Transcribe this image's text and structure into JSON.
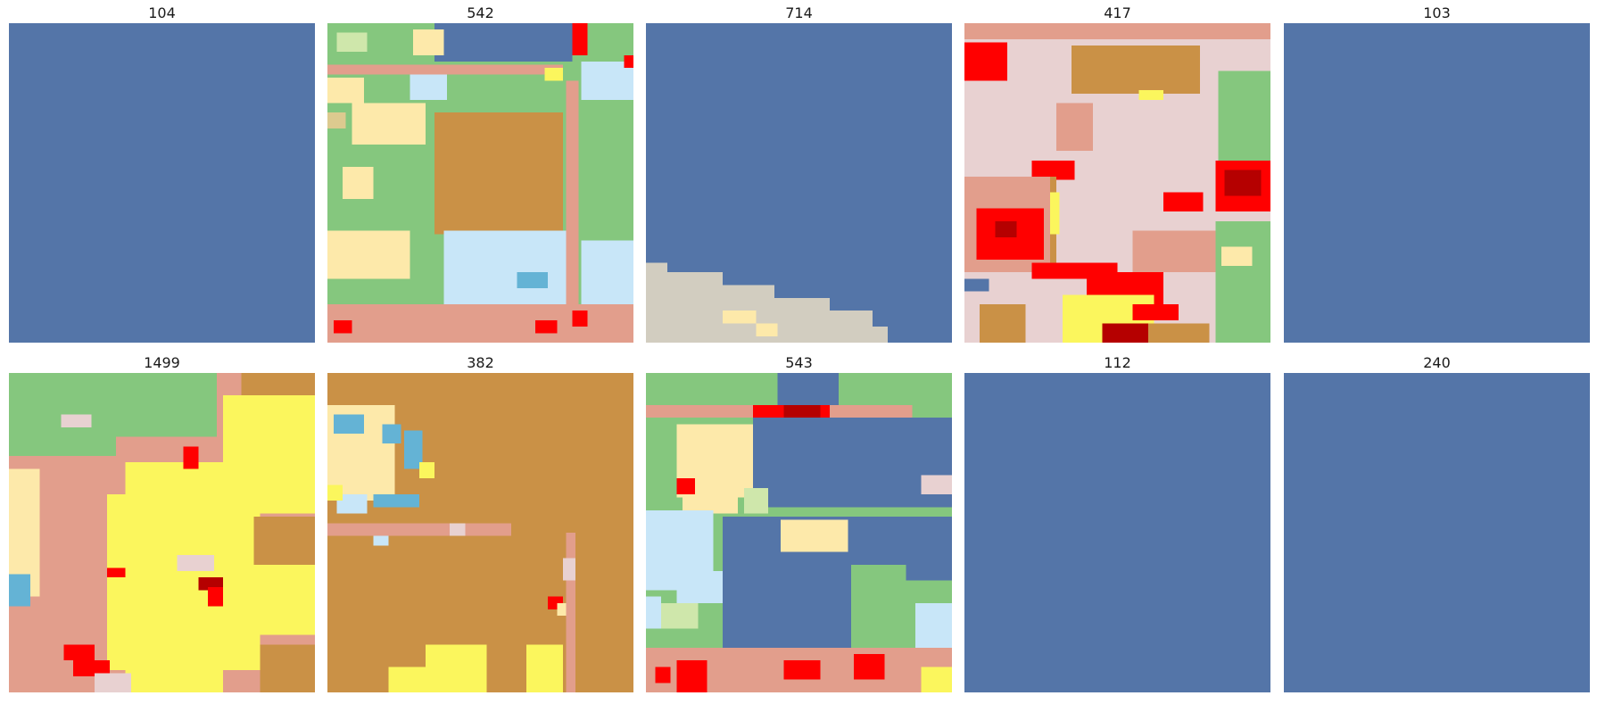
{
  "palette": {
    "water": "#5475a8",
    "grass": "#85c77e",
    "shrub": "#dcca8f",
    "crop": "#fde9aa",
    "dev_open": "#e8d1d1",
    "dev_low": "#e29e8c",
    "dev_med": "#ff0000",
    "dev_high": "#b50000",
    "forest": "#ca9146",
    "barren": "#d2cdc0",
    "wetland": "#c8e6f8",
    "wetland_dark": "#64b3d5",
    "pasture": "#fbf65d",
    "mixed": "#cfe7ab"
  },
  "panels": [
    {
      "title": "104",
      "base": "water",
      "blocks": []
    },
    {
      "title": "542",
      "base": "grass",
      "blocks": [
        [
          "water",
          0.35,
          0,
          0.45,
          0.12
        ],
        [
          "crop",
          0.28,
          0.02,
          0.1,
          0.08
        ],
        [
          "mixed",
          0.03,
          0.03,
          0.1,
          0.06
        ],
        [
          "dev_low",
          0,
          0.13,
          0.77,
          0.03
        ],
        [
          "crop",
          0,
          0.17,
          0.12,
          0.08
        ],
        [
          "shrub",
          0,
          0.28,
          0.06,
          0.05
        ],
        [
          "crop",
          0.08,
          0.25,
          0.24,
          0.13
        ],
        [
          "wetland",
          0.27,
          0.16,
          0.12,
          0.08
        ],
        [
          "forest",
          0.35,
          0.28,
          0.42,
          0.38
        ],
        [
          "crop",
          0,
          0.65,
          0.27,
          0.15
        ],
        [
          "crop",
          0.05,
          0.45,
          0.1,
          0.1
        ],
        [
          "wetland",
          0.38,
          0.65,
          0.42,
          0.23
        ],
        [
          "wetland_dark",
          0.62,
          0.78,
          0.1,
          0.05
        ],
        [
          "dev_low",
          0.78,
          0.18,
          0.04,
          0.82
        ],
        [
          "wetland",
          0.83,
          0.12,
          0.17,
          0.12
        ],
        [
          "wetland",
          0.83,
          0.68,
          0.17,
          0.2
        ],
        [
          "dev_low",
          0,
          0.88,
          1,
          0.12
        ],
        [
          "dev_med",
          0.8,
          0,
          0.05,
          0.1
        ],
        [
          "dev_med",
          0.97,
          0.1,
          0.03,
          0.04
        ],
        [
          "dev_med",
          0.02,
          0.93,
          0.06,
          0.04
        ],
        [
          "dev_med",
          0.68,
          0.93,
          0.07,
          0.04
        ],
        [
          "dev_med",
          0.8,
          0.9,
          0.05,
          0.05
        ],
        [
          "pasture",
          0.71,
          0.14,
          0.06,
          0.04
        ]
      ]
    },
    {
      "title": "714",
      "base": "water",
      "blocks": [
        [
          "barren",
          0,
          0.75,
          0.07,
          0.25
        ],
        [
          "barren",
          0.07,
          0.78,
          0.18,
          0.22
        ],
        [
          "barren",
          0.17,
          0.82,
          0.25,
          0.18
        ],
        [
          "barren",
          0.34,
          0.86,
          0.26,
          0.14
        ],
        [
          "barren",
          0.48,
          0.9,
          0.26,
          0.1
        ],
        [
          "barren",
          0.58,
          0.95,
          0.21,
          0.05
        ],
        [
          "crop",
          0.25,
          0.9,
          0.11,
          0.04
        ],
        [
          "crop",
          0.36,
          0.94,
          0.07,
          0.04
        ]
      ]
    },
    {
      "title": "417",
      "base": "dev_open",
      "blocks": [
        [
          "dev_low",
          0,
          0,
          1,
          0.05
        ],
        [
          "dev_med",
          0,
          0.06,
          0.14,
          0.12
        ],
        [
          "forest",
          0.35,
          0.07,
          0.42,
          0.15
        ],
        [
          "pasture",
          0.57,
          0.21,
          0.08,
          0.03
        ],
        [
          "grass",
          0.83,
          0.15,
          0.17,
          0.3
        ],
        [
          "dev_low",
          0.3,
          0.25,
          0.12,
          0.15
        ],
        [
          "dev_med",
          0.22,
          0.43,
          0.14,
          0.06
        ],
        [
          "dev_med",
          0.82,
          0.43,
          0.18,
          0.16
        ],
        [
          "dev_high",
          0.85,
          0.46,
          0.12,
          0.08
        ],
        [
          "forest",
          0.25,
          0.48,
          0.05,
          0.3
        ],
        [
          "pasture",
          0.28,
          0.53,
          0.03,
          0.13
        ],
        [
          "dev_low",
          0,
          0.48,
          0.28,
          0.3
        ],
        [
          "dev_med",
          0.04,
          0.58,
          0.22,
          0.16
        ],
        [
          "dev_high",
          0.1,
          0.62,
          0.07,
          0.05
        ],
        [
          "dev_med",
          0.65,
          0.53,
          0.13,
          0.06
        ],
        [
          "dev_low",
          0.55,
          0.65,
          0.45,
          0.13
        ],
        [
          "grass",
          0.82,
          0.62,
          0.18,
          0.38
        ],
        [
          "crop",
          0.84,
          0.7,
          0.1,
          0.06
        ],
        [
          "dev_med",
          0.22,
          0.75,
          0.28,
          0.05
        ],
        [
          "dev_med",
          0.4,
          0.78,
          0.25,
          0.12
        ],
        [
          "water",
          0,
          0.8,
          0.08,
          0.04
        ],
        [
          "pasture",
          0.32,
          0.85,
          0.3,
          0.15
        ],
        [
          "forest",
          0.05,
          0.88,
          0.15,
          0.12
        ],
        [
          "dev_high",
          0.45,
          0.94,
          0.15,
          0.06
        ],
        [
          "forest",
          0.6,
          0.94,
          0.2,
          0.06
        ],
        [
          "dev_med",
          0.55,
          0.88,
          0.15,
          0.05
        ]
      ]
    },
    {
      "title": "103",
      "base": "water",
      "blocks": []
    },
    {
      "title": "1499",
      "base": "dev_low",
      "blocks": [
        [
          "grass",
          0,
          0,
          0.68,
          0.2
        ],
        [
          "grass",
          0,
          0.2,
          0.35,
          0.06
        ],
        [
          "forest",
          0.76,
          0,
          0.24,
          0.07
        ],
        [
          "pasture",
          0.7,
          0.07,
          0.3,
          0.37
        ],
        [
          "dev_open",
          0.17,
          0.13,
          0.1,
          0.04
        ],
        [
          "pasture",
          0.38,
          0.28,
          0.32,
          0.72
        ],
        [
          "pasture",
          0.32,
          0.38,
          0.5,
          0.55
        ],
        [
          "crop",
          0,
          0.3,
          0.1,
          0.4
        ],
        [
          "wetland_dark",
          0,
          0.63,
          0.07,
          0.1
        ],
        [
          "forest",
          0.8,
          0.45,
          0.2,
          0.18
        ],
        [
          "forest",
          0.82,
          0.85,
          0.18,
          0.15
        ],
        [
          "dev_open",
          0.55,
          0.57,
          0.12,
          0.05
        ],
        [
          "dev_high",
          0.62,
          0.64,
          0.08,
          0.04
        ],
        [
          "dev_med",
          0.65,
          0.67,
          0.05,
          0.06
        ],
        [
          "dev_med",
          0.18,
          0.85,
          0.1,
          0.05
        ],
        [
          "dev_med",
          0.21,
          0.9,
          0.12,
          0.05
        ],
        [
          "dev_med",
          0.32,
          0.61,
          0.06,
          0.03
        ],
        [
          "dev_med",
          0.57,
          0.23,
          0.05,
          0.07
        ],
        [
          "dev_med",
          0.97,
          0.74,
          0.03,
          0.04
        ],
        [
          "dev_open",
          0.28,
          0.94,
          0.12,
          0.06
        ],
        [
          "pasture",
          0.7,
          0.6,
          0.3,
          0.22
        ]
      ]
    },
    {
      "title": "382",
      "base": "forest",
      "blocks": [
        [
          "crop",
          0,
          0.1,
          0.22,
          0.3
        ],
        [
          "wetland_dark",
          0.02,
          0.13,
          0.1,
          0.06
        ],
        [
          "wetland_dark",
          0.18,
          0.16,
          0.06,
          0.06
        ],
        [
          "wetland_dark",
          0.25,
          0.18,
          0.06,
          0.12
        ],
        [
          "wetland_dark",
          0.15,
          0.38,
          0.15,
          0.04
        ],
        [
          "wetland",
          0.03,
          0.38,
          0.1,
          0.06
        ],
        [
          "pasture",
          0,
          0.35,
          0.05,
          0.05
        ],
        [
          "pasture",
          0.3,
          0.28,
          0.05,
          0.05
        ],
        [
          "dev_low",
          0,
          0.47,
          0.6,
          0.04
        ],
        [
          "dev_open",
          0.4,
          0.47,
          0.05,
          0.04
        ],
        [
          "wetland",
          0.15,
          0.51,
          0.05,
          0.03
        ],
        [
          "dev_low",
          0.78,
          0.5,
          0.03,
          0.5
        ],
        [
          "dev_open",
          0.77,
          0.58,
          0.04,
          0.07
        ],
        [
          "pasture",
          0.32,
          0.85,
          0.2,
          0.15
        ],
        [
          "pasture",
          0.2,
          0.92,
          0.15,
          0.08
        ],
        [
          "pasture",
          0.65,
          0.85,
          0.12,
          0.15
        ],
        [
          "dev_med",
          0.72,
          0.7,
          0.05,
          0.04
        ],
        [
          "crop",
          0.75,
          0.72,
          0.03,
          0.04
        ]
      ]
    },
    {
      "title": "543",
      "base": "grass",
      "blocks": [
        [
          "water",
          0.43,
          0,
          0.2,
          0.12
        ],
        [
          "dev_low",
          0,
          0.1,
          0.87,
          0.04
        ],
        [
          "dev_med",
          0.35,
          0.1,
          0.25,
          0.04
        ],
        [
          "dev_high",
          0.45,
          0.1,
          0.12,
          0.04
        ],
        [
          "water",
          0.35,
          0.14,
          0.65,
          0.28
        ],
        [
          "water",
          0.25,
          0.45,
          0.75,
          0.2
        ],
        [
          "water",
          0.25,
          0.6,
          0.42,
          0.26
        ],
        [
          "crop",
          0.1,
          0.16,
          0.25,
          0.23
        ],
        [
          "crop",
          0.12,
          0.32,
          0.18,
          0.12
        ],
        [
          "wetland",
          0,
          0.43,
          0.22,
          0.25
        ],
        [
          "wetland",
          0.1,
          0.62,
          0.15,
          0.1
        ],
        [
          "crop",
          0.44,
          0.46,
          0.22,
          0.1
        ],
        [
          "mixed",
          0.32,
          0.36,
          0.08,
          0.08
        ],
        [
          "mixed",
          0.05,
          0.72,
          0.12,
          0.08
        ],
        [
          "wetland",
          0,
          0.7,
          0.05,
          0.1
        ],
        [
          "grass",
          0.67,
          0.6,
          0.18,
          0.22
        ],
        [
          "wetland",
          0.88,
          0.72,
          0.12,
          0.18
        ],
        [
          "dev_open",
          0.9,
          0.32,
          0.1,
          0.06
        ],
        [
          "dev_low",
          0,
          0.86,
          1,
          0.14
        ],
        [
          "dev_med",
          0.1,
          0.9,
          0.1,
          0.1
        ],
        [
          "dev_med",
          0.45,
          0.9,
          0.12,
          0.06
        ],
        [
          "dev_med",
          0.68,
          0.88,
          0.1,
          0.08
        ],
        [
          "dev_med",
          0.03,
          0.92,
          0.05,
          0.05
        ],
        [
          "pasture",
          0.9,
          0.92,
          0.1,
          0.08
        ],
        [
          "dev_med",
          0.1,
          0.33,
          0.06,
          0.05
        ]
      ]
    },
    {
      "title": "112",
      "base": "water",
      "blocks": []
    },
    {
      "title": "240",
      "base": "water",
      "blocks": []
    }
  ]
}
